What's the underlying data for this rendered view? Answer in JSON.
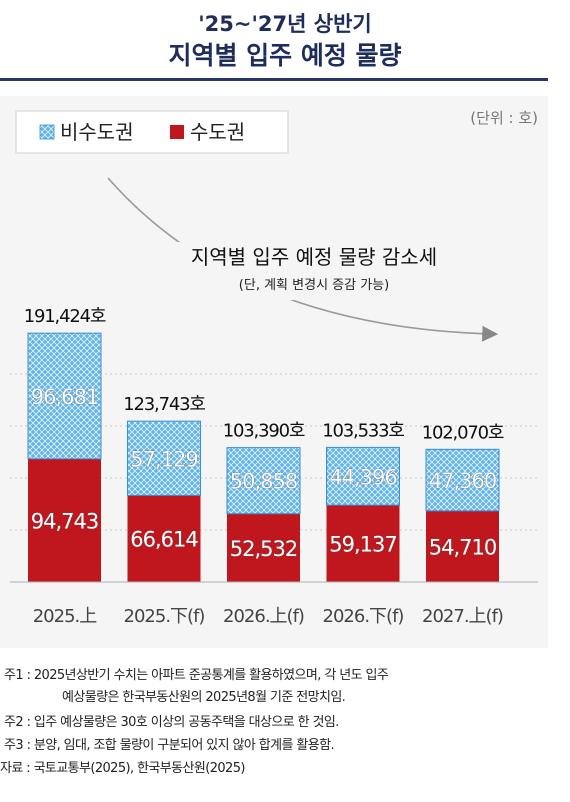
{
  "header": {
    "title_line1": "'25~'27년 상반기",
    "title_line2": "지역별 입주 예정 물량"
  },
  "chart_data": {
    "type": "bar",
    "stacked": true,
    "unit_label": "(단위 : 호)",
    "categories": [
      "2025.上",
      "2025.下(f)",
      "2026.上(f)",
      "2026.下(f)",
      "2027.上(f)"
    ],
    "series": [
      {
        "name": "수도권",
        "color": "#c0161d",
        "values": [
          94743,
          66614,
          52532,
          59137,
          54710
        ],
        "labels": [
          "94,743",
          "66,614",
          "52,532",
          "59,137",
          "54,710"
        ]
      },
      {
        "name": "비수도권",
        "color": "#5fb4ec",
        "values": [
          96681,
          57129,
          50858,
          44396,
          47360
        ],
        "labels": [
          "96,681",
          "57,129",
          "50,858",
          "44,396",
          "47,360"
        ]
      }
    ],
    "totals": [
      191424,
      123743,
      103390,
      103533,
      102070
    ],
    "total_labels": [
      "191,424호",
      "123,743호",
      "103,390호",
      "103,533호",
      "102,070호"
    ],
    "annotation": {
      "text": "지역별 입주 예정 물량 감소세",
      "subtext": "(단, 계획 변경시 증감 가능)"
    },
    "legend_position": "top-left",
    "grid": true,
    "ylim": [
      0,
      200000
    ]
  },
  "notes": [
    "주1 : 2025년상반기 수치는 아파트 준공통계를 활용하였으며, 각 년도 입주",
    "예상물량은 한국부동산원의 2025년8월 기준 전망치임.",
    "주2 : 입주 예상물량은 30호 이상의 공동주택을 대상으로 한 것임.",
    "주3 : 분양, 임대, 조합 물량이 구분되어 있지 않아 합계를 활용함.",
    "자료 : 국토교통부(2025), 한국부동산원(2025)"
  ]
}
